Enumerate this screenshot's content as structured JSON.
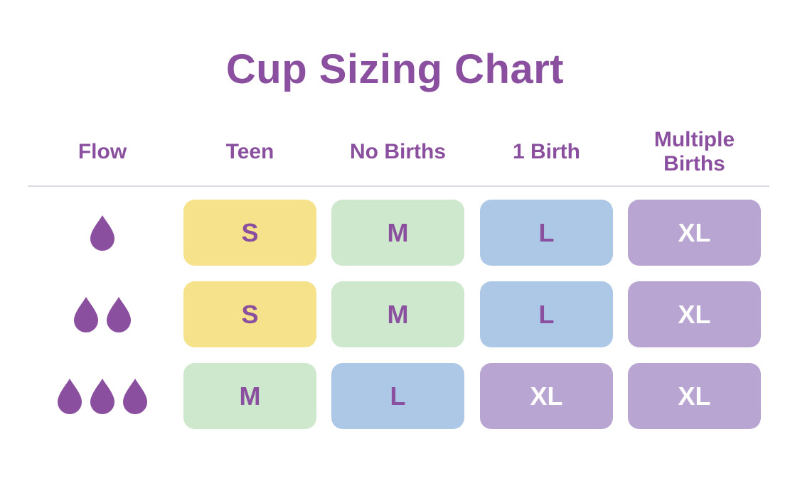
{
  "title": "Cup Sizing Chart",
  "colors": {
    "text": "#8b4f9f",
    "light_text": "#ffffff",
    "S": "#f5e28a",
    "M": "#cde8cc",
    "L": "#adc8e6",
    "XL": "#b8a5d2",
    "drop": "#8b4f9f",
    "rule": "#dcdce6"
  },
  "headers": {
    "flow": "Flow",
    "teen": "Teen",
    "no_births": "No Births",
    "one_birth": "1 Birth",
    "multiple_births": "Multiple Births"
  },
  "rows": [
    {
      "flow_drops": 1,
      "sizes": [
        "S",
        "M",
        "L",
        "XL"
      ]
    },
    {
      "flow_drops": 2,
      "sizes": [
        "S",
        "M",
        "L",
        "XL"
      ]
    },
    {
      "flow_drops": 3,
      "sizes": [
        "M",
        "L",
        "XL",
        "XL"
      ]
    }
  ],
  "icons": {
    "flow_level": "droplet-icon"
  }
}
